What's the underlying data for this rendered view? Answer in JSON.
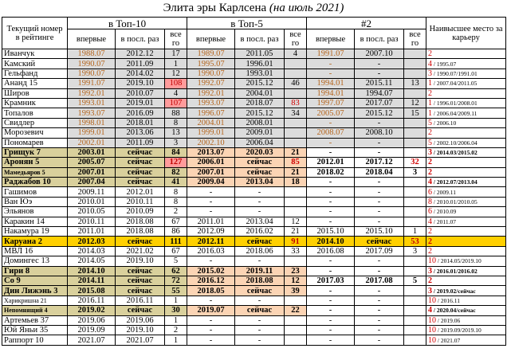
{
  "header": {
    "title": "Элита эры Карлсена",
    "subtitle": "(на июль 2021)"
  },
  "table": {
    "columns": {
      "name": "Текущий номер в рейтинге",
      "groups": [
        "в Топ-10",
        "в Топ-5",
        "#2"
      ],
      "sub": [
        "впервые",
        "в посл. раз",
        "все го"
      ],
      "best": "Наивысшее место за карьеру"
    },
    "rows": [
      [
        "Иванчук",
        "1988.07",
        "2012.12",
        17,
        "1989.07",
        "2011.05",
        4,
        "1991.07",
        "2007.10",
        null,
        "2",
        null
      ],
      [
        "Камский",
        "1990.07",
        "2011.09",
        1,
        "1995.07",
        "1996.01",
        null,
        "-",
        "-",
        null,
        "4",
        "/ 1995.07"
      ],
      [
        "Гельфанд",
        "1990.07",
        "2014.02",
        12,
        "1990.07",
        "1993.01",
        null,
        "-",
        "-",
        null,
        "3",
        "/ 1990.07/1991.01"
      ],
      [
        "Ананд 15",
        "1991.07",
        "2019.10",
        108,
        "1992.07",
        "2015.12",
        46,
        "1994.01",
        "2015.11",
        13,
        "1",
        "/ 2007.04/2011.05"
      ],
      [
        "Широв",
        "1992.01",
        "2010.07",
        4,
        "1992.01",
        "2004.01",
        null,
        "1994.01",
        "1994.07",
        null,
        "2",
        null
      ],
      [
        "Крамник",
        "1993.01",
        "2019.01",
        107,
        "1993.07",
        "2018.07",
        83,
        "1997.07",
        "2017.07",
        12,
        "1",
        "/ 1996.01/2008.01"
      ],
      [
        "Топалов",
        "1993.07",
        "2016.09",
        88,
        "1996.07",
        "2015.12",
        34,
        "2005.07",
        "2015.12",
        15,
        "1",
        "/ 2006.04/2009.11"
      ],
      [
        "Свидлер",
        "1998.01",
        "2018.01",
        8,
        "2004.01",
        "2008.01",
        null,
        "-",
        "-",
        null,
        "5",
        "/ 2006.10"
      ],
      [
        "Морозевич",
        "1999.01",
        "2013.06",
        13,
        "1999.01",
        "2009.01",
        null,
        "2008.07",
        "2008.10",
        null,
        "2",
        null
      ],
      [
        "Пономарев",
        "2002.01",
        "2011.09",
        3,
        "2002.10",
        "2006.04",
        null,
        "-",
        "-",
        null,
        "5",
        "/ 2002.10/2006.04"
      ],
      [
        "Грищук 7",
        "2003.01",
        "сейчас",
        84,
        "2013.07",
        "2020.03",
        21,
        "-",
        "-",
        null,
        "3",
        "/ 2014.03/2015.02"
      ],
      [
        "Аронян 5",
        "2005.07",
        "сейчас",
        127,
        "2006.01",
        "сейчас",
        85,
        "2012.01",
        "2017.12",
        32,
        "2",
        null
      ],
      [
        "Мамедьяров 5",
        "2007.01",
        "сейчас",
        82,
        "2007.01",
        "сейчас",
        21,
        "2018.02",
        "2018.04",
        3,
        "2",
        null
      ],
      [
        "Раджабов 10",
        "2007.04",
        "сейчас",
        41,
        "2009.04",
        "2013.04",
        18,
        "-",
        "-",
        null,
        "4",
        "/ 2012.07/2013.04"
      ],
      [
        "Гашимов",
        "2009.11",
        "2012.01",
        8,
        "-",
        "-",
        null,
        "-",
        "-",
        null,
        "6",
        "/ 2009.11"
      ],
      [
        "Ван Юэ",
        "2010.01",
        "2010.11",
        8,
        "-",
        "-",
        null,
        "-",
        "-",
        null,
        "8",
        "/ 2010.01/2010.05"
      ],
      [
        "Эльянов",
        "2010.05",
        "2010.09",
        2,
        "-",
        "-",
        null,
        "-",
        "-",
        null,
        "6",
        "/ 2010.09"
      ],
      [
        "Каракин 14",
        "2010.11",
        "2018.08",
        67,
        "2011.01",
        "2013.04",
        12,
        "-",
        "-",
        null,
        "4",
        "/ 2011.07"
      ],
      [
        "Накамура 19",
        "2011.01",
        "2018.08",
        86,
        "2012.09",
        "2016.02",
        21,
        "2015.10",
        "2015.10",
        1,
        "2",
        null
      ],
      [
        "Каруана 2",
        "2012.03",
        "сейчас",
        111,
        "2012.11",
        "сейчас",
        91,
        "2014.10",
        "сейчас",
        53,
        "2",
        null
      ],
      [
        "МВЛ 16",
        "2014.03",
        "2021.02",
        67,
        "2016.03",
        "2018.06",
        33,
        "2016.08",
        "2017.09",
        3,
        "2",
        null
      ],
      [
        "Домингес 13",
        "2014.05",
        "2019.10",
        5,
        "-",
        "-",
        null,
        "-",
        "-",
        null,
        "10",
        "/ 2014.05/2019.10"
      ],
      [
        "Гири 8",
        "2014.10",
        "сейчас",
        62,
        "2015.02",
        "2019.11",
        23,
        "-",
        "-",
        null,
        "3",
        "/ 2016.01/2016.02"
      ],
      [
        "Со 9",
        "2014.11",
        "сейчас",
        72,
        "2016.12",
        "2018.08",
        12,
        "2017.03",
        "2017.08",
        5,
        "2",
        null
      ],
      [
        "Дин Лижэнь 3",
        "2015.08",
        "сейчас",
        55,
        "2018.05",
        "сейчас",
        39,
        "-",
        "-",
        null,
        "3",
        "/ 2019.02/сейчас"
      ],
      [
        "Харикришна 21",
        "2016.11",
        "2016.11",
        1,
        "-",
        "-",
        null,
        "-",
        "-",
        null,
        "10",
        "/ 2016.11"
      ],
      [
        "Непомнящий 4",
        "2019.02",
        "сейчас",
        30,
        "2019.07",
        "сейчас",
        22,
        "-",
        "-",
        null,
        "4",
        "/ 2020.04/сейчас"
      ],
      [
        "Артемьев 37",
        "2019.06",
        "2019.06",
        1,
        "-",
        "-",
        null,
        "-",
        "-",
        null,
        "10",
        "/ 2019.06"
      ],
      [
        "Юй Яньи 35",
        "2019.09",
        "2019.10",
        2,
        "-",
        "-",
        null,
        "-",
        "-",
        null,
        "10",
        "/ 2019.09/2019.10"
      ],
      [
        "Раппорт 10",
        "2021.07",
        "2021.07",
        1,
        "-",
        "-",
        null,
        "-",
        "-",
        null,
        "10",
        "/ 2021.07"
      ]
    ]
  }
}
